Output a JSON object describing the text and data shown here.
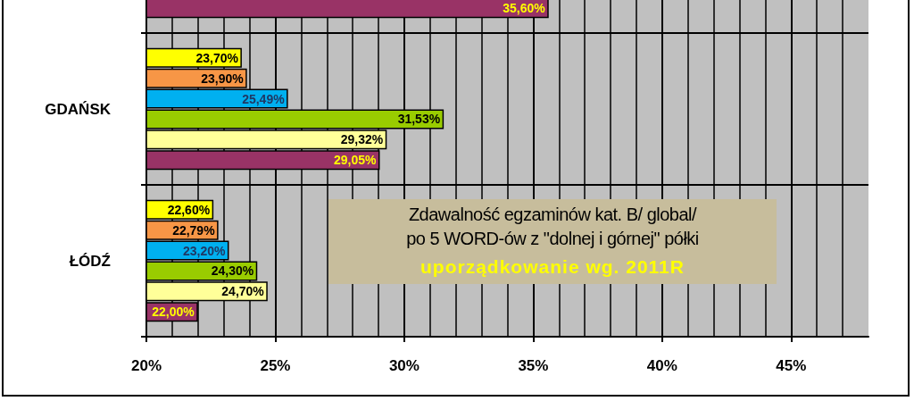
{
  "chart_data": {
    "type": "bar",
    "orientation": "horizontal",
    "categories": [
      null,
      "GDAŃSK",
      "ŁÓDŹ"
    ],
    "series": [
      {
        "color": "#ffff00",
        "values": [
          null,
          23.7,
          22.6
        ],
        "value_labels": [
          null,
          "23,70%",
          "22,60%"
        ]
      },
      {
        "color": "#f79646",
        "values": [
          null,
          23.9,
          22.79
        ],
        "value_labels": [
          null,
          "23,90%",
          "22,79%"
        ]
      },
      {
        "color": "#00b0f0",
        "values": [
          null,
          25.49,
          23.2
        ],
        "value_labels": [
          null,
          "25,49%",
          "23,20%"
        ]
      },
      {
        "color": "#99cc00",
        "values": [
          null,
          31.53,
          24.3
        ],
        "value_labels": [
          null,
          "31,53%",
          "24,30%"
        ]
      },
      {
        "color": "#ffff99",
        "values": [
          null,
          29.32,
          24.7
        ],
        "value_labels": [
          null,
          "29,32%",
          "24,70%"
        ]
      },
      {
        "color": "#993366",
        "values": [
          35.6,
          29.05,
          22.0
        ],
        "value_labels": [
          "35,60%",
          "29,05%",
          "22,00%"
        ]
      }
    ],
    "xlim": [
      20,
      48
    ],
    "xticks": [
      {
        "value": 20,
        "label": "20%"
      },
      {
        "value": 25,
        "label": "25%"
      },
      {
        "value": 30,
        "label": "30%"
      },
      {
        "value": 35,
        "label": "35%"
      },
      {
        "value": 40,
        "label": "40%"
      },
      {
        "value": 45,
        "label": "45%"
      }
    ],
    "grid": "x",
    "annotations": [
      "Zdawalność egzaminów kat. B/ global/",
      "po 5 WORD-ów z \"dolnej i górnej\" półki",
      "uporządkowanie wg. 2011R"
    ]
  }
}
